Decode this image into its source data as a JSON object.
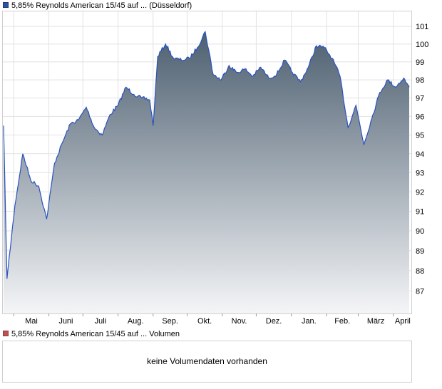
{
  "colors": {
    "series_line": "#2a52be",
    "series_swatch": "#2f4fa0",
    "volume_swatch": "#c0504d",
    "area_top": "#4d5f70",
    "area_bottom": "#f4f5f7",
    "grid": "#e2e2e2",
    "frame": "#cfcfcf"
  },
  "price_legend": "5,85% Reynolds American 15/45 auf ... (Düsseldorf)",
  "volume_legend": "5,85% Reynolds American 15/45 auf ... Volumen",
  "volume_message": "keine Volumendaten vorhanden",
  "chart_data": {
    "type": "area",
    "series": [
      {
        "name": "5,85% Reynolds American 15/45 auf ... (Düsseldorf)",
        "x": [
          "Apr-22",
          "Apr-25",
          "May-02",
          "May-09",
          "May-16",
          "May-23",
          "May-30",
          "Jun-06",
          "Jun-13",
          "Jun-20",
          "Jun-27",
          "Jul-04",
          "Jul-11",
          "Jul-18",
          "Jul-25",
          "Aug-01",
          "Aug-08",
          "Aug-15",
          "Aug-22",
          "Aug-29",
          "Sep-01",
          "Sep-05",
          "Sep-12",
          "Sep-19",
          "Sep-26",
          "Oct-03",
          "Oct-10",
          "Oct-17",
          "Oct-24",
          "Oct-31",
          "Nov-07",
          "Nov-14",
          "Nov-21",
          "Nov-28",
          "Dec-05",
          "Dec-12",
          "Dec-19",
          "Dec-26",
          "Jan-02",
          "Jan-09",
          "Jan-16",
          "Jan-23",
          "Jan-30",
          "Feb-06",
          "Feb-13",
          "Feb-20",
          "Feb-27",
          "Mar-06",
          "Mar-13",
          "Mar-20",
          "Mar-27",
          "Apr-03",
          "Apr-10",
          "Apr-15"
        ],
        "values": [
          95.5,
          87.6,
          91.3,
          94.0,
          92.6,
          92.3,
          90.6,
          93.5,
          94.6,
          95.6,
          95.8,
          96.5,
          95.4,
          95.0,
          96.1,
          96.6,
          97.6,
          97.2,
          97.0,
          96.9,
          95.5,
          99.3,
          100.0,
          99.2,
          99.1,
          99.2,
          99.8,
          100.7,
          98.3,
          98.0,
          98.8,
          98.4,
          98.6,
          98.2,
          98.7,
          98.1,
          98.3,
          99.1,
          98.4,
          97.9,
          98.7,
          99.9,
          99.8,
          99.2,
          98.2,
          95.4,
          96.6,
          94.5,
          95.9,
          97.3,
          98.0,
          97.6,
          98.1,
          97.6
        ]
      }
    ],
    "x_tick_labels": [
      "Mai",
      "Juni",
      "Juli",
      "Aug.",
      "Sep.",
      "Okt.",
      "Nov.",
      "Dez.",
      "Jan.",
      "Feb.",
      "März",
      "April"
    ],
    "y_ticks": [
      87,
      88,
      89,
      90,
      91,
      92,
      93,
      94,
      95,
      96,
      97,
      98,
      99,
      100,
      101
    ],
    "ylim": [
      85.9,
      101.9
    ],
    "y_scale": "log",
    "grid": true,
    "title": "",
    "xlabel": "",
    "ylabel": ""
  }
}
